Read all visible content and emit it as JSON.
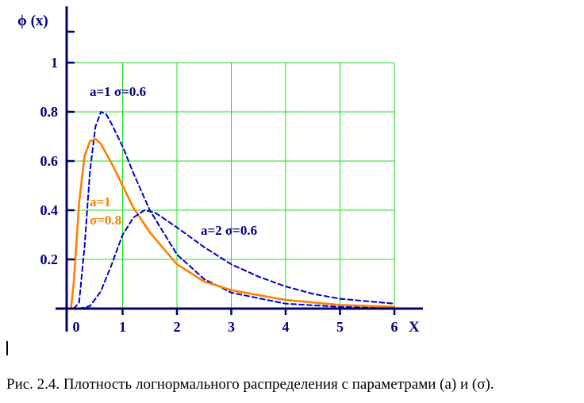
{
  "chart_data": {
    "type": "line",
    "ylabel": "ϕ (x)",
    "xlabel": "X",
    "xlim": [
      0,
      6
    ],
    "ylim": [
      0,
      1
    ],
    "x_ticks": [
      "0",
      "1",
      "2",
      "3",
      "4",
      "5",
      "6"
    ],
    "y_ticks": [
      "0.2",
      "0.4",
      "0.6",
      "0.8",
      "1"
    ],
    "grid": true,
    "series": [
      {
        "label_lines": [
          "a=1  σ=0.6"
        ],
        "a": 1,
        "sigma": 0.6,
        "color": "#0000CC",
        "dash": true,
        "x": [
          0.1,
          0.2,
          0.3,
          0.4,
          0.5,
          0.6,
          0.7,
          0.8,
          1.0,
          1.2,
          1.5,
          2.0,
          2.5,
          3.0,
          4.0,
          5.0,
          6.0
        ],
        "y": [
          0.0,
          0.025,
          0.25,
          0.56,
          0.74,
          0.8,
          0.79,
          0.75,
          0.66,
          0.55,
          0.4,
          0.22,
          0.12,
          0.065,
          0.02,
          0.007,
          0.002
        ]
      },
      {
        "label_lines": [
          "a=1",
          "σ=0.8"
        ],
        "a": 1,
        "sigma": 0.8,
        "color": "#FF7F00",
        "dash": false,
        "x": [
          0.05,
          0.1,
          0.2,
          0.3,
          0.4,
          0.5,
          0.6,
          0.8,
          1.0,
          1.2,
          1.5,
          2.0,
          2.5,
          3.0,
          4.0,
          5.0,
          6.0
        ],
        "y": [
          0.0,
          0.1,
          0.43,
          0.62,
          0.68,
          0.69,
          0.67,
          0.59,
          0.5,
          0.41,
          0.31,
          0.18,
          0.11,
          0.075,
          0.035,
          0.015,
          0.007
        ]
      },
      {
        "label_lines": [
          "a=2  σ=0.6"
        ],
        "a": 2,
        "sigma": 0.6,
        "color": "#0000CC",
        "dash": true,
        "x": [
          0.2,
          0.4,
          0.6,
          0.8,
          1.0,
          1.2,
          1.4,
          1.6,
          2.0,
          2.5,
          3.0,
          3.5,
          4.0,
          4.5,
          5.0,
          5.5,
          6.0
        ],
        "y": [
          0.0,
          0.01,
          0.07,
          0.18,
          0.3,
          0.37,
          0.4,
          0.39,
          0.33,
          0.25,
          0.18,
          0.13,
          0.09,
          0.06,
          0.04,
          0.03,
          0.02
        ]
      }
    ]
  },
  "caption": "Рис. 2.4. Плотность логнормального распределения с параметрами (а) и (σ)."
}
